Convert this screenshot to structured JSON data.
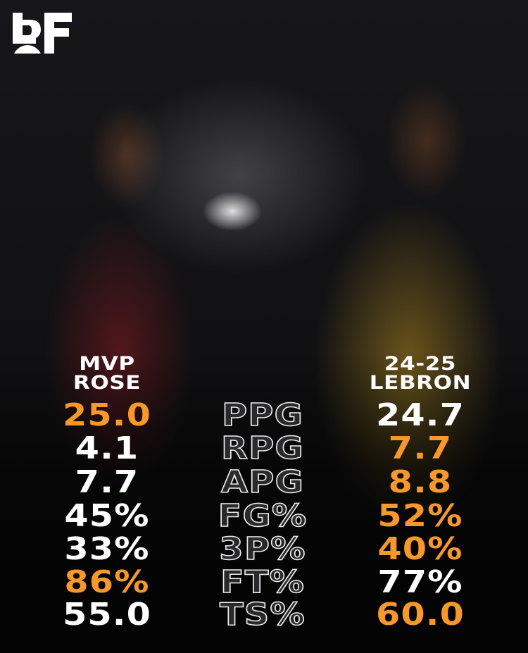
{
  "brand": {
    "logo_text": "BF"
  },
  "colors": {
    "highlight": "#f7982a",
    "normal": "#ffffff"
  },
  "players": {
    "left": {
      "line1": "MVP",
      "line2": "ROSE"
    },
    "right": {
      "line1": "24-25",
      "line2": "LEBRON"
    }
  },
  "stats": [
    {
      "label": "PPG",
      "left": "25.0",
      "right": "24.7",
      "leader": "left"
    },
    {
      "label": "RPG",
      "left": "4.1",
      "right": "7.7",
      "leader": "right"
    },
    {
      "label": "APG",
      "left": "7.7",
      "right": "8.8",
      "leader": "right"
    },
    {
      "label": "FG%",
      "left": "45%",
      "right": "52%",
      "leader": "right"
    },
    {
      "label": "3P%",
      "left": "33%",
      "right": "40%",
      "leader": "right"
    },
    {
      "label": "FT%",
      "left": "86%",
      "right": "77%",
      "leader": "left"
    },
    {
      "label": "TS%",
      "left": "55.0",
      "right": "60.0",
      "leader": "right"
    }
  ]
}
